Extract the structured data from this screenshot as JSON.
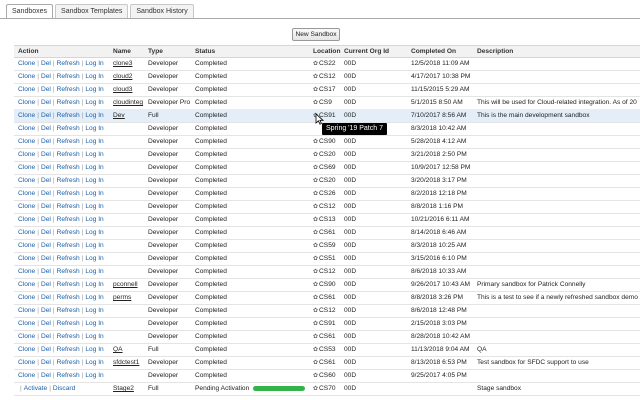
{
  "tabs": [
    "Sandboxes",
    "Sandbox Templates",
    "Sandbox History"
  ],
  "new_button": "New Sandbox",
  "columns": [
    "Action",
    "Name",
    "Type",
    "Status",
    "Location",
    "Current Org Id",
    "Completed On",
    "Description"
  ],
  "actions": {
    "clone": "Clone",
    "del": "Del",
    "refresh": "Refresh",
    "login": "Log In",
    "activate": "Activate",
    "discard": "Discard",
    "sep": "|"
  },
  "tooltip": "Spring '19 Patch 7",
  "icon_names": {
    "location": "gear-icon",
    "cursor": "mouse-pointer-icon"
  },
  "colors": {
    "link": "#1a5fa8",
    "progress": "#35b34a",
    "selected_row": "#e3eef8"
  },
  "rows": [
    {
      "name": "clone3",
      "type": "Developer",
      "status": "Completed",
      "location": "CS22",
      "org": "00D",
      "completed": "12/5/2018 11:09 AM",
      "desc": ""
    },
    {
      "name": "cloud2",
      "type": "Developer",
      "status": "Completed",
      "location": "CS12",
      "org": "00D",
      "completed": "4/17/2017 10:38 PM",
      "desc": ""
    },
    {
      "name": "cloud3",
      "type": "Developer",
      "status": "Completed",
      "location": "CS17",
      "org": "00D",
      "completed": "11/15/2015 5:29 AM",
      "desc": ""
    },
    {
      "name": "cloudinteg",
      "type": "Developer Pro",
      "status": "Completed",
      "location": "CS9",
      "org": "00D",
      "completed": "5/1/2015 8:50 AM",
      "desc": "This will be used for Cloud-related integration. As of 20"
    },
    {
      "name": "Dev",
      "type": "Full",
      "status": "Completed",
      "location": "CS91",
      "org": "00D",
      "completed": "7/10/2017 8:56 AM",
      "desc": "This is the main development sandbox"
    },
    {
      "name": "",
      "type": "Developer",
      "status": "Completed",
      "location": "",
      "org": "",
      "completed": "8/3/2018 10:42 AM",
      "desc": ""
    },
    {
      "name": "",
      "type": "Developer",
      "status": "Completed",
      "location": "CS90",
      "org": "00D",
      "completed": "5/28/2018 4:12 AM",
      "desc": ""
    },
    {
      "name": "",
      "type": "Developer",
      "status": "Completed",
      "location": "CS20",
      "org": "00D",
      "completed": "3/21/2018 2:50 PM",
      "desc": ""
    },
    {
      "name": "",
      "type": "Developer",
      "status": "Completed",
      "location": "CS69",
      "org": "00D",
      "completed": "10/9/2017 12:58 PM",
      "desc": ""
    },
    {
      "name": "",
      "type": "Developer",
      "status": "Completed",
      "location": "CS20",
      "org": "00D",
      "completed": "3/20/2018 3:17 PM",
      "desc": ""
    },
    {
      "name": "",
      "type": "Developer",
      "status": "Completed",
      "location": "CS26",
      "org": "00D",
      "completed": "8/2/2018 12:18 PM",
      "desc": ""
    },
    {
      "name": "",
      "type": "Developer",
      "status": "Completed",
      "location": "CS12",
      "org": "00D",
      "completed": "8/8/2018 1:16 PM",
      "desc": ""
    },
    {
      "name": "",
      "type": "Developer",
      "status": "Completed",
      "location": "CS13",
      "org": "00D",
      "completed": "10/21/2016 6:11 AM",
      "desc": ""
    },
    {
      "name": "",
      "type": "Developer",
      "status": "Completed",
      "location": "CS61",
      "org": "00D",
      "completed": "8/14/2018 6:46 AM",
      "desc": ""
    },
    {
      "name": "",
      "type": "Developer",
      "status": "Completed",
      "location": "CS59",
      "org": "00D",
      "completed": "8/3/2018 10:25 AM",
      "desc": ""
    },
    {
      "name": "",
      "type": "Developer",
      "status": "Completed",
      "location": "CS51",
      "org": "00D",
      "completed": "3/15/2016 6:10 PM",
      "desc": ""
    },
    {
      "name": "",
      "type": "Developer",
      "status": "Completed",
      "location": "CS12",
      "org": "00D",
      "completed": "8/6/2018 10:33 AM",
      "desc": ""
    },
    {
      "name": "pconnell",
      "type": "Developer",
      "status": "Completed",
      "location": "CS90",
      "org": "00D",
      "completed": "9/26/2017 10:43 AM",
      "desc": "Primary sandbox for Patrick Connelly"
    },
    {
      "name": "perms",
      "type": "Developer",
      "status": "Completed",
      "location": "CS61",
      "org": "00D",
      "completed": "8/8/2018 3:26 PM",
      "desc": "This is a test to see if a newly refreshed sandbox demo"
    },
    {
      "name": "",
      "type": "Developer",
      "status": "Completed",
      "location": "CS12",
      "org": "00D",
      "completed": "8/6/2018 12:48 PM",
      "desc": ""
    },
    {
      "name": "",
      "type": "Developer",
      "status": "Completed",
      "location": "CS91",
      "org": "00D",
      "completed": "2/15/2018 3:03 PM",
      "desc": ""
    },
    {
      "name": "",
      "type": "Developer",
      "status": "Completed",
      "location": "CS61",
      "org": "00D",
      "completed": "8/28/2018 10:42 AM",
      "desc": ""
    },
    {
      "name": "QA",
      "type": "Full",
      "status": "Completed",
      "location": "CS53",
      "org": "00D",
      "completed": "11/13/2018 9:04 AM",
      "desc": "QA"
    },
    {
      "name": "sfdctest1",
      "type": "Developer",
      "status": "Completed",
      "location": "CS61",
      "org": "00D",
      "completed": "8/13/2018 6:53 PM",
      "desc": "Test sandbox for SFDC support to use"
    },
    {
      "name": "",
      "type": "Developer",
      "status": "Completed",
      "location": "CS60",
      "org": "00D",
      "completed": "9/25/2017 4:05 PM",
      "desc": ""
    },
    {
      "name": "Stage2",
      "type": "Full",
      "status": "Pending Activation",
      "location": "CS70",
      "org": "00D",
      "completed": "",
      "desc": "Stage sandbox",
      "pending": true
    }
  ]
}
